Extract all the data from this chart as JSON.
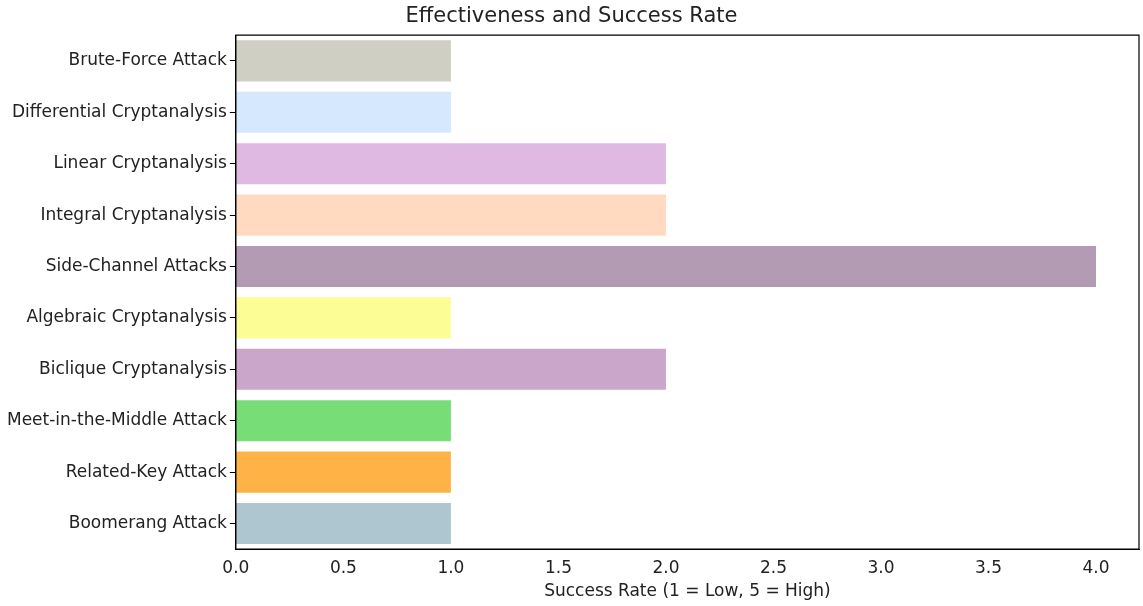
{
  "chart_data": {
    "type": "bar",
    "orientation": "horizontal",
    "title": "Effectiveness and Success Rate",
    "xlabel": "Success Rate (1 = Low, 5 = High)",
    "categories": [
      "Brute-Force Attack",
      "Differential Cryptanalysis",
      "Linear Cryptanalysis",
      "Integral Cryptanalysis",
      "Side-Channel Attacks",
      "Algebraic Cryptanalysis",
      "Biclique Cryptanalysis",
      "Meet-in-the-Middle Attack",
      "Related-Key Attack",
      "Boomerang Attack"
    ],
    "values": [
      1,
      1,
      2,
      2,
      4,
      1,
      2,
      1,
      1,
      1
    ],
    "colors": [
      "#cfcfc4",
      "#d6e8fd",
      "#e0b9e3",
      "#ffdac1",
      "#b39bb3",
      "#fdfd96",
      "#cba6cb",
      "#77dd77",
      "#ffb347",
      "#aec6cf"
    ],
    "xlim": [
      0,
      4.2
    ],
    "xticks": [
      {
        "value": 0,
        "label": "0.0"
      },
      0.5,
      {
        "value": 1,
        "label": "1.0"
      },
      1.5,
      {
        "value": 2,
        "label": "2.0"
      },
      2.5,
      {
        "value": 3,
        "label": "3.0"
      },
      3.5,
      {
        "value": 4,
        "label": "4.0"
      }
    ],
    "grid": false,
    "legend": false
  }
}
